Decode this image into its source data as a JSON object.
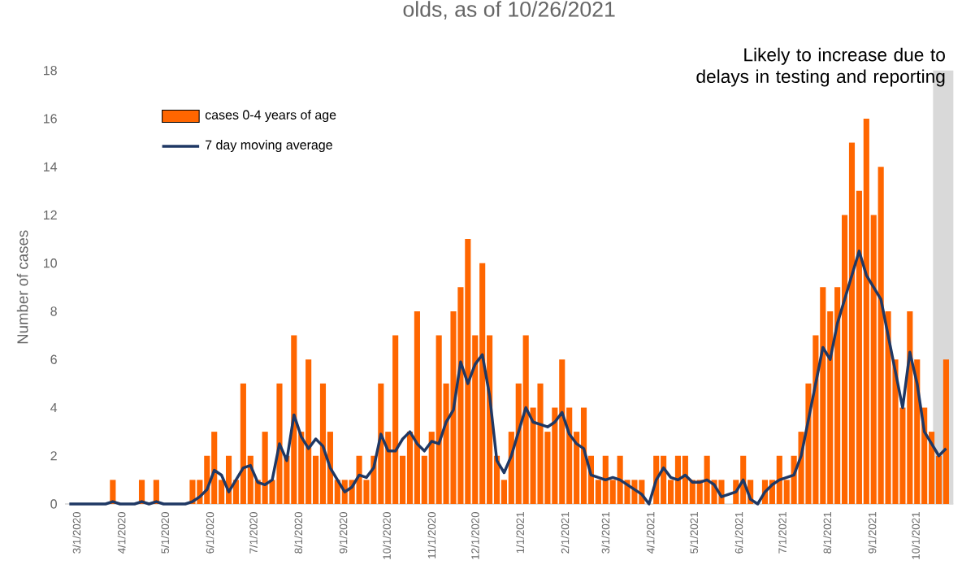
{
  "chart_data": {
    "type": "bar",
    "title": "olds, as of 10/26/2021",
    "ylabel": "Number of cases",
    "x": [
      "2020-02-25",
      "2020-03-01",
      "2020-03-06",
      "2020-03-11",
      "2020-03-16",
      "2020-03-21",
      "2020-03-26",
      "2020-03-31",
      "2020-04-05",
      "2020-04-10",
      "2020-04-15",
      "2020-04-20",
      "2020-04-25",
      "2020-04-30",
      "2020-05-05",
      "2020-05-10",
      "2020-05-15",
      "2020-05-20",
      "2020-05-25",
      "2020-05-30",
      "2020-06-04",
      "2020-06-09",
      "2020-06-14",
      "2020-06-19",
      "2020-06-24",
      "2020-06-29",
      "2020-07-04",
      "2020-07-09",
      "2020-07-14",
      "2020-07-19",
      "2020-07-24",
      "2020-07-29",
      "2020-08-03",
      "2020-08-08",
      "2020-08-13",
      "2020-08-18",
      "2020-08-23",
      "2020-08-28",
      "2020-09-02",
      "2020-09-07",
      "2020-09-12",
      "2020-09-17",
      "2020-09-22",
      "2020-09-27",
      "2020-10-02",
      "2020-10-07",
      "2020-10-12",
      "2020-10-17",
      "2020-10-22",
      "2020-10-27",
      "2020-11-01",
      "2020-11-06",
      "2020-11-11",
      "2020-11-16",
      "2020-11-21",
      "2020-11-26",
      "2020-12-01",
      "2020-12-06",
      "2020-12-11",
      "2020-12-16",
      "2020-12-21",
      "2020-12-26",
      "2020-12-31",
      "2021-01-05",
      "2021-01-10",
      "2021-01-15",
      "2021-01-20",
      "2021-01-25",
      "2021-01-30",
      "2021-02-04",
      "2021-02-09",
      "2021-02-14",
      "2021-02-19",
      "2021-02-24",
      "2021-03-01",
      "2021-03-06",
      "2021-03-11",
      "2021-03-16",
      "2021-03-21",
      "2021-03-26",
      "2021-03-31",
      "2021-04-05",
      "2021-04-10",
      "2021-04-15",
      "2021-04-20",
      "2021-04-25",
      "2021-04-30",
      "2021-05-05",
      "2021-05-10",
      "2021-05-15",
      "2021-05-20",
      "2021-05-25",
      "2021-05-30",
      "2021-06-04",
      "2021-06-09",
      "2021-06-14",
      "2021-06-19",
      "2021-06-24",
      "2021-06-29",
      "2021-07-04",
      "2021-07-09",
      "2021-07-14",
      "2021-07-19",
      "2021-07-24",
      "2021-07-29",
      "2021-08-03",
      "2021-08-08",
      "2021-08-13",
      "2021-08-18",
      "2021-08-23",
      "2021-08-28",
      "2021-09-02",
      "2021-09-07",
      "2021-09-12",
      "2021-09-17",
      "2021-09-22",
      "2021-09-27",
      "2021-10-02",
      "2021-10-07",
      "2021-10-12",
      "2021-10-17",
      "2021-10-22"
    ],
    "series": [
      {
        "name": "cases 0-4 years of age",
        "color": "#ff6600",
        "values": [
          0,
          0,
          0,
          0,
          0,
          0,
          1,
          0,
          0,
          0,
          1,
          0,
          1,
          0,
          0,
          0,
          0,
          1,
          1,
          2,
          3,
          1,
          2,
          1,
          5,
          2,
          1,
          3,
          1,
          5,
          2,
          7,
          3,
          6,
          2,
          5,
          3,
          1,
          1,
          1,
          2,
          1,
          2,
          5,
          3,
          7,
          2,
          3,
          8,
          2,
          3,
          7,
          5,
          8,
          9,
          11,
          7,
          10,
          7,
          2,
          1,
          3,
          5,
          7,
          4,
          5,
          3,
          4,
          6,
          4,
          3,
          4,
          2,
          1,
          2,
          1,
          2,
          1,
          1,
          1,
          0,
          2,
          2,
          1,
          2,
          2,
          1,
          1,
          2,
          1,
          1,
          0,
          1,
          2,
          1,
          0,
          1,
          1,
          2,
          1,
          2,
          3,
          5,
          7,
          9,
          8,
          9,
          12,
          15,
          13,
          16,
          12,
          14,
          8,
          6,
          4,
          8,
          6,
          4,
          3,
          2,
          6
        ]
      },
      {
        "name": "7 day moving average",
        "type": "line",
        "color": "#1f3864",
        "values": [
          0,
          0,
          0,
          0,
          0,
          0,
          0.1,
          0,
          0,
          0,
          0.1,
          0,
          0.1,
          0,
          0,
          0,
          0,
          0.1,
          0.3,
          0.6,
          1.4,
          1.2,
          0.5,
          1.0,
          1.5,
          1.6,
          0.9,
          0.8,
          1.0,
          2.5,
          1.8,
          3.7,
          2.8,
          2.3,
          2.7,
          2.4,
          1.5,
          1.0,
          0.5,
          0.7,
          1.2,
          1.1,
          1.5,
          2.9,
          2.2,
          2.2,
          2.7,
          3.0,
          2.5,
          2.2,
          2.6,
          2.5,
          3.4,
          3.9,
          5.9,
          5.0,
          5.8,
          6.2,
          4.5,
          1.8,
          1.3,
          2.0,
          3.0,
          4.0,
          3.4,
          3.3,
          3.2,
          3.4,
          3.8,
          2.9,
          2.5,
          2.3,
          1.2,
          1.1,
          1.0,
          1.1,
          1.0,
          0.8,
          0.6,
          0.4,
          0.0,
          1.0,
          1.5,
          1.1,
          1.0,
          1.2,
          0.9,
          0.9,
          1.0,
          0.8,
          0.3,
          0.4,
          0.5,
          1.0,
          0.2,
          0.0,
          0.5,
          0.8,
          1.0,
          1.1,
          1.2,
          2.0,
          3.5,
          5.0,
          6.5,
          6.0,
          7.5,
          8.5,
          9.5,
          10.5,
          9.5,
          9.0,
          8.5,
          7.0,
          5.5,
          4.0,
          6.3,
          5.0,
          3.0,
          2.5,
          2.0,
          2.3
        ]
      }
    ],
    "xlim": [
      "2020-02-22",
      "2021-10-27"
    ],
    "xticks": [
      {
        "value": "2020-03-01",
        "label": "3/1/2020"
      },
      {
        "value": "2020-04-01",
        "label": "4/1/2020"
      },
      {
        "value": "2020-05-01",
        "label": "5/1/2020"
      },
      {
        "value": "2020-06-01",
        "label": "6/1/2020"
      },
      {
        "value": "2020-07-01",
        "label": "7/1/2020"
      },
      {
        "value": "2020-08-01",
        "label": "8/1/2020"
      },
      {
        "value": "2020-09-01",
        "label": "9/1/2020"
      },
      {
        "value": "2020-10-01",
        "label": "10/1/2020"
      },
      {
        "value": "2020-11-01",
        "label": "11/1/2020"
      },
      {
        "value": "2020-12-01",
        "label": "12/1/2020"
      },
      {
        "value": "2021-01-01",
        "label": "1/1/2021"
      },
      {
        "value": "2021-02-01",
        "label": "2/1/2021"
      },
      {
        "value": "2021-03-01",
        "label": "3/1/2021"
      },
      {
        "value": "2021-04-01",
        "label": "4/1/2021"
      },
      {
        "value": "2021-05-01",
        "label": "5/1/2021"
      },
      {
        "value": "2021-06-01",
        "label": "6/1/2021"
      },
      {
        "value": "2021-07-01",
        "label": "7/1/2021"
      },
      {
        "value": "2021-08-01",
        "label": "8/1/2021"
      },
      {
        "value": "2021-09-01",
        "label": "9/1/2021"
      },
      {
        "value": "2021-10-01",
        "label": "10/1/2021"
      }
    ],
    "ylim": [
      0,
      18
    ],
    "yticks": [
      0,
      2,
      4,
      6,
      8,
      10,
      12,
      14,
      16,
      18
    ],
    "legend": "top left",
    "bands": [
      {
        "axis": "x",
        "from": "2021-10-13",
        "to": "2021-10-27",
        "color": "#d9d9d9"
      }
    ],
    "annotations": [
      "Likely to increase due to delays in testing and reporting"
    ]
  }
}
